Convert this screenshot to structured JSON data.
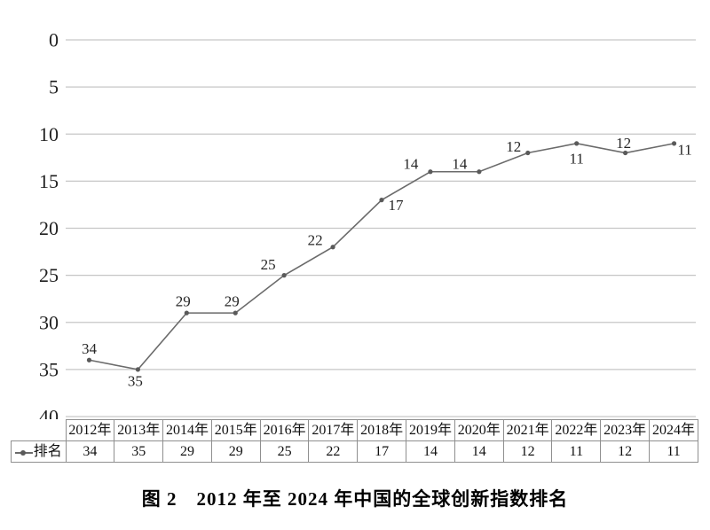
{
  "chart_data": {
    "type": "line",
    "title": "",
    "xlabel": "",
    "ylabel": "",
    "categories": [
      "2012年",
      "2013年",
      "2014年",
      "2015年",
      "2016年",
      "2017年",
      "2018年",
      "2019年",
      "2020年",
      "2021年",
      "2022年",
      "2023年",
      "2024年"
    ],
    "series": [
      {
        "name": "排名",
        "values": [
          34,
          35,
          29,
          29,
          25,
          22,
          17,
          14,
          14,
          12,
          11,
          12,
          11
        ]
      }
    ],
    "y_axis": {
      "min": 0,
      "max": 40,
      "ticks": [
        0,
        5,
        10,
        15,
        20,
        25,
        30,
        35,
        40
      ],
      "inverted_ranking_axis": true
    },
    "grid": true,
    "data_labels_shown": true,
    "legend_position": "table-row-header",
    "line_color": "#6b6b6b",
    "marker_color": "#5a5a5a",
    "gridline_color": "#c6c6c6",
    "table_border_color": "#8f8f8f"
  },
  "table": {
    "row_header": "排名",
    "legend_icon": "line-dot-marker"
  },
  "caption": "图 2　2012 年至 2024 年中国的全球创新指数排名"
}
